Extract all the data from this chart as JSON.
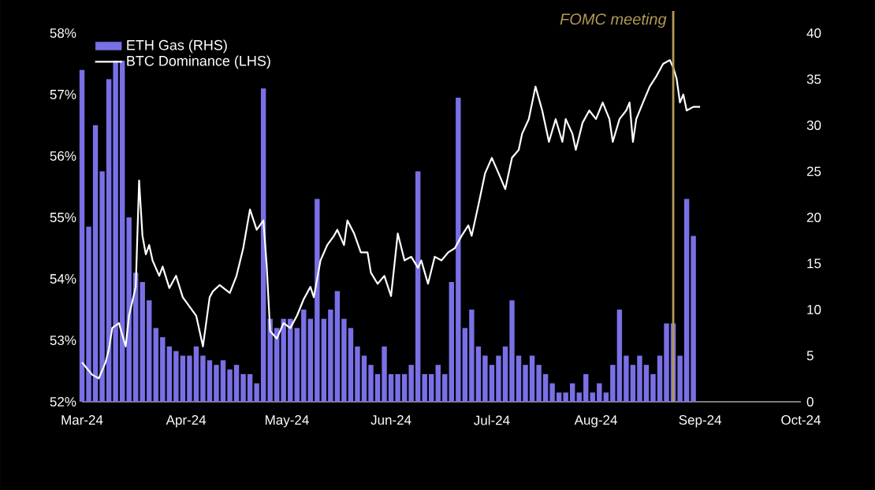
{
  "chart_data": {
    "type": "line",
    "xlim": [
      "2024-03-01",
      "2024-10-01"
    ],
    "xticks": [
      {
        "value": "2024-03-01",
        "label": "Mar-24"
      },
      {
        "value": "2024-04-01",
        "label": "Apr-24"
      },
      {
        "value": "2024-05-01",
        "label": "May-24"
      },
      {
        "value": "2024-06-01",
        "label": "Jun-24"
      },
      {
        "value": "2024-07-01",
        "label": "Jul-24"
      },
      {
        "value": "2024-08-01",
        "label": "Aug-24"
      },
      {
        "value": "2024-09-01",
        "label": "Sep-24"
      },
      {
        "value": "2024-10-01",
        "label": "Oct-24"
      }
    ],
    "ylim": [
      52,
      58
    ],
    "yticks": [
      {
        "value": 52,
        "label": "52%"
      },
      {
        "value": 53,
        "label": "53%"
      },
      {
        "value": 54,
        "label": "54%"
      },
      {
        "value": 55,
        "label": "55%"
      },
      {
        "value": 56,
        "label": "56%"
      },
      {
        "value": 57,
        "label": "57%"
      },
      {
        "value": 58,
        "label": "58%"
      }
    ],
    "y2lim": [
      0,
      40
    ],
    "y2ticks": [
      0,
      5,
      10,
      15,
      20,
      25,
      30,
      35,
      40
    ],
    "legend": "top left",
    "grid": false,
    "series": [
      {
        "name": "ETH Gas (RHS)",
        "type": "bar",
        "axis": "y2",
        "color": "#7a70e6",
        "x": [
          "2024-03-01",
          "2024-03-03",
          "2024-03-05",
          "2024-03-07",
          "2024-03-09",
          "2024-03-11",
          "2024-03-13",
          "2024-03-15",
          "2024-03-17",
          "2024-03-19",
          "2024-03-21",
          "2024-03-23",
          "2024-03-25",
          "2024-03-27",
          "2024-03-29",
          "2024-03-31",
          "2024-04-02",
          "2024-04-04",
          "2024-04-06",
          "2024-04-08",
          "2024-04-10",
          "2024-04-12",
          "2024-04-14",
          "2024-04-16",
          "2024-04-18",
          "2024-04-20",
          "2024-04-22",
          "2024-04-24",
          "2024-04-26",
          "2024-04-28",
          "2024-04-30",
          "2024-05-02",
          "2024-05-04",
          "2024-05-06",
          "2024-05-08",
          "2024-05-10",
          "2024-05-12",
          "2024-05-14",
          "2024-05-16",
          "2024-05-18",
          "2024-05-20",
          "2024-05-22",
          "2024-05-24",
          "2024-05-26",
          "2024-05-28",
          "2024-05-30",
          "2024-06-01",
          "2024-06-03",
          "2024-06-05",
          "2024-06-07",
          "2024-06-09",
          "2024-06-11",
          "2024-06-13",
          "2024-06-15",
          "2024-06-17",
          "2024-06-19",
          "2024-06-21",
          "2024-06-23",
          "2024-06-25",
          "2024-06-27",
          "2024-06-29",
          "2024-07-01",
          "2024-07-03",
          "2024-07-05",
          "2024-07-07",
          "2024-07-09",
          "2024-07-11",
          "2024-07-13",
          "2024-07-15",
          "2024-07-17",
          "2024-07-19",
          "2024-07-21",
          "2024-07-23",
          "2024-07-25",
          "2024-07-27",
          "2024-07-29",
          "2024-07-31",
          "2024-08-02",
          "2024-08-04",
          "2024-08-06",
          "2024-08-08",
          "2024-08-10",
          "2024-08-12",
          "2024-08-14",
          "2024-08-16",
          "2024-08-18",
          "2024-08-20",
          "2024-08-22",
          "2024-08-24",
          "2024-08-26",
          "2024-08-28",
          "2024-08-30"
        ],
        "values": [
          36,
          19,
          30,
          25,
          35,
          37,
          37,
          20,
          14,
          13,
          11,
          8,
          7,
          6,
          5.5,
          5,
          5,
          6,
          5,
          4.5,
          4,
          4.5,
          3.5,
          4,
          3,
          3,
          2,
          34,
          9,
          8,
          9,
          9,
          8,
          10,
          9,
          22,
          9,
          10,
          12,
          9,
          8,
          6,
          5,
          4,
          3,
          6,
          3,
          3,
          3,
          4,
          25,
          3,
          3,
          4,
          3,
          13,
          33,
          8,
          10,
          6,
          5,
          4,
          5,
          6,
          11,
          5,
          4,
          5,
          4,
          3,
          2,
          1,
          1,
          2,
          1,
          3,
          1,
          2,
          1,
          4,
          10,
          5,
          4,
          5,
          4,
          3,
          5,
          8.5,
          8.5,
          5,
          22,
          18
        ]
      },
      {
        "name": "BTC Dominance (LHS)",
        "color": "#ffffff",
        "line_style": "solid",
        "x": [
          "2024-03-01",
          "2024-03-04",
          "2024-03-06",
          "2024-03-08",
          "2024-03-09",
          "2024-03-10",
          "2024-03-12",
          "2024-03-14",
          "2024-03-15",
          "2024-03-17",
          "2024-03-18",
          "2024-03-19",
          "2024-03-20",
          "2024-03-21",
          "2024-03-22",
          "2024-03-24",
          "2024-03-25",
          "2024-03-27",
          "2024-03-29",
          "2024-03-31",
          "2024-04-02",
          "2024-04-04",
          "2024-04-06",
          "2024-04-08",
          "2024-04-09",
          "2024-04-11",
          "2024-04-14",
          "2024-04-16",
          "2024-04-18",
          "2024-04-20",
          "2024-04-22",
          "2024-04-24",
          "2024-04-25",
          "2024-04-26",
          "2024-04-28",
          "2024-04-30",
          "2024-05-02",
          "2024-05-04",
          "2024-05-06",
          "2024-05-08",
          "2024-05-09",
          "2024-05-11",
          "2024-05-13",
          "2024-05-15",
          "2024-05-16",
          "2024-05-18",
          "2024-05-19",
          "2024-05-21",
          "2024-05-23",
          "2024-05-25",
          "2024-05-26",
          "2024-05-28",
          "2024-05-30",
          "2024-06-01",
          "2024-06-03",
          "2024-06-05",
          "2024-06-07",
          "2024-06-09",
          "2024-06-10",
          "2024-06-12",
          "2024-06-14",
          "2024-06-16",
          "2024-06-18",
          "2024-06-20",
          "2024-06-22",
          "2024-06-24",
          "2024-06-25",
          "2024-06-27",
          "2024-06-29",
          "2024-07-01",
          "2024-07-03",
          "2024-07-05",
          "2024-07-07",
          "2024-07-09",
          "2024-07-10",
          "2024-07-12",
          "2024-07-14",
          "2024-07-16",
          "2024-07-18",
          "2024-07-20",
          "2024-07-22",
          "2024-07-23",
          "2024-07-25",
          "2024-07-26",
          "2024-07-28",
          "2024-07-30",
          "2024-08-01",
          "2024-08-03",
          "2024-08-05",
          "2024-08-06",
          "2024-08-08",
          "2024-08-10",
          "2024-08-11",
          "2024-08-12",
          "2024-08-13",
          "2024-08-15",
          "2024-08-17",
          "2024-08-19",
          "2024-08-21",
          "2024-08-23",
          "2024-08-24",
          "2024-08-25",
          "2024-08-26",
          "2024-08-27",
          "2024-08-28",
          "2024-08-30",
          "2024-09-01"
        ],
        "values": [
          52.64,
          52.44,
          52.38,
          52.64,
          52.85,
          53.2,
          53.28,
          52.9,
          53.4,
          53.87,
          55.6,
          54.7,
          54.4,
          54.55,
          54.3,
          54.05,
          54.2,
          53.85,
          54.05,
          53.7,
          53.55,
          53.4,
          52.9,
          53.7,
          53.8,
          53.9,
          53.77,
          54.05,
          54.5,
          55.13,
          54.8,
          54.95,
          54.2,
          53.15,
          53.03,
          53.28,
          53.2,
          53.4,
          53.67,
          53.87,
          53.7,
          54.3,
          54.55,
          54.7,
          54.8,
          54.55,
          54.95,
          54.74,
          54.43,
          54.43,
          54.1,
          53.92,
          54.05,
          53.72,
          54.74,
          54.3,
          54.36,
          54.18,
          54.3,
          53.92,
          54.36,
          54.3,
          54.43,
          54.5,
          54.7,
          54.87,
          54.7,
          55.2,
          55.72,
          55.97,
          55.72,
          55.46,
          55.97,
          56.1,
          56.36,
          56.6,
          57.13,
          56.74,
          56.23,
          56.6,
          56.23,
          56.6,
          56.36,
          56.1,
          56.54,
          56.74,
          56.6,
          56.87,
          56.6,
          56.23,
          56.6,
          56.74,
          56.87,
          56.23,
          56.6,
          56.87,
          57.13,
          57.3,
          57.5,
          57.56,
          57.44,
          57.26,
          56.87,
          57,
          56.74,
          56.8,
          56.8
        ]
      }
    ],
    "ref_lines": [
      {
        "axis": "x",
        "value": "2024-08-24",
        "label": "*FOMC meeting*",
        "color": "#b39a55"
      }
    ]
  }
}
